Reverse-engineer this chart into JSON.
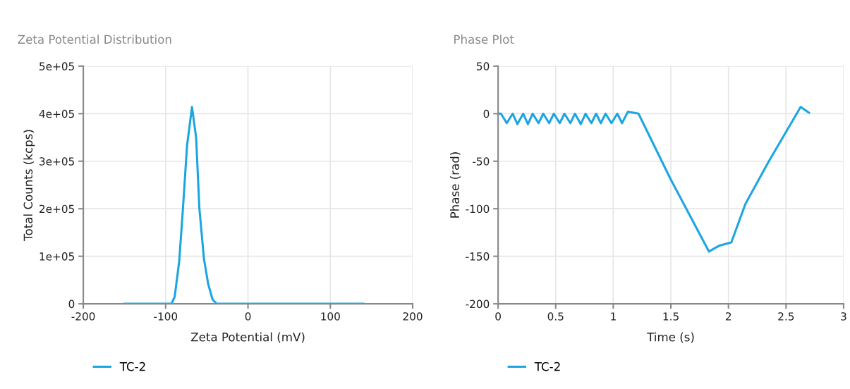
{
  "chart_data": [
    {
      "type": "line",
      "title": "Zeta Potential Distribution",
      "xlabel": "Zeta Potential (mV)",
      "ylabel": "Total Counts (kcps)",
      "series": [
        {
          "name": "TC-2",
          "color": "#1ba6e1",
          "x": [
            -150,
            -93,
            -89,
            -83.5,
            -79,
            -74,
            -68,
            -63,
            -59,
            -53.5,
            -48.4,
            -43,
            -38,
            140
          ],
          "values": [
            0,
            0,
            15000,
            90000,
            200000,
            333000,
            414000,
            350000,
            200000,
            95000,
            42000,
            9000,
            0,
            0
          ]
        }
      ],
      "xlim": [
        -200,
        200
      ],
      "xticks": [
        -200,
        -100,
        0,
        100,
        200
      ],
      "ylim": [
        0,
        500000
      ],
      "yticks": [
        {
          "value": 0,
          "label": "0"
        },
        {
          "value": 100000,
          "label": "1e+05"
        },
        {
          "value": 200000,
          "label": "2e+05"
        },
        {
          "value": 300000,
          "label": "3e+05"
        },
        {
          "value": 400000,
          "label": "4e+05"
        },
        {
          "value": 500000,
          "label": "5e+05"
        }
      ],
      "grid": true,
      "legend": "bottom left",
      "marker": "none",
      "line_style": "solid"
    },
    {
      "type": "line",
      "title": "Phase Plot",
      "xlabel": "Time (s)",
      "ylabel": "Phase (rad)",
      "series": [
        {
          "name": "TC-2",
          "color": "#1ba6e1",
          "x": [
            0,
            0.025,
            0.075,
            0.127,
            0.167,
            0.218,
            0.259,
            0.3,
            0.351,
            0.392,
            0.443,
            0.484,
            0.535,
            0.576,
            0.627,
            0.667,
            0.718,
            0.759,
            0.81,
            0.851,
            0.892,
            0.933,
            0.984,
            1.035,
            1.076,
            1.127,
            1.219,
            1.494,
            1.831,
            1.923,
            2.025,
            2.147,
            2.351,
            2.627,
            2.699
          ],
          "values": [
            0,
            0,
            -10,
            0,
            -11,
            0,
            -11,
            0,
            -10,
            0,
            -10,
            0,
            -10,
            0,
            -10,
            0,
            -11,
            0,
            -10,
            0,
            -10,
            0,
            -10,
            0,
            -10,
            2,
            0,
            -68,
            -145,
            -138.7,
            -135.5,
            -95,
            -50,
            7,
            1
          ]
        }
      ],
      "xlim": [
        0,
        3
      ],
      "xticks": [
        0,
        0.5,
        1,
        1.5,
        2,
        2.5,
        3
      ],
      "ylim": [
        -200,
        50
      ],
      "yticks": [
        -200,
        -150,
        -100,
        -50,
        0,
        50
      ],
      "grid": true,
      "legend": "bottom left",
      "marker": "none",
      "line_style": "solid"
    }
  ]
}
